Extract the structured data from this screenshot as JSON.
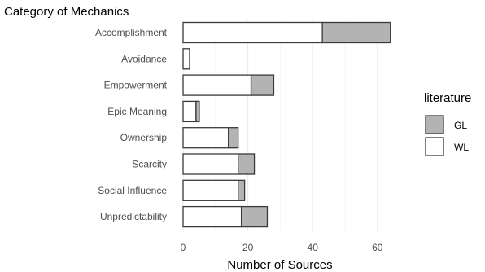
{
  "chart_data": {
    "type": "bar",
    "orientation": "horizontal",
    "stacked": true,
    "title": "Category of Mechanics",
    "xlabel": "Number of Sources",
    "ylabel": "",
    "categories": [
      "Accomplishment",
      "Avoidance",
      "Empowerment",
      "Epic Meaning",
      "Ownership",
      "Scarcity",
      "Social Influence",
      "Unpredictability"
    ],
    "series": [
      {
        "name": "WL",
        "values": [
          43,
          2,
          21,
          4,
          14,
          17,
          17,
          18
        ],
        "color": "#ffffff"
      },
      {
        "name": "GL",
        "values": [
          21,
          0,
          7,
          1,
          3,
          5,
          2,
          8
        ],
        "color": "#b3b3b3"
      }
    ],
    "xlim": [
      0,
      66
    ],
    "xticks": [
      0,
      20,
      40,
      60
    ],
    "grid": true,
    "legend": {
      "title": "literature",
      "position": "right",
      "entries": [
        {
          "name": "GL",
          "color": "#b3b3b3"
        },
        {
          "name": "WL",
          "color": "#ffffff"
        }
      ]
    }
  }
}
